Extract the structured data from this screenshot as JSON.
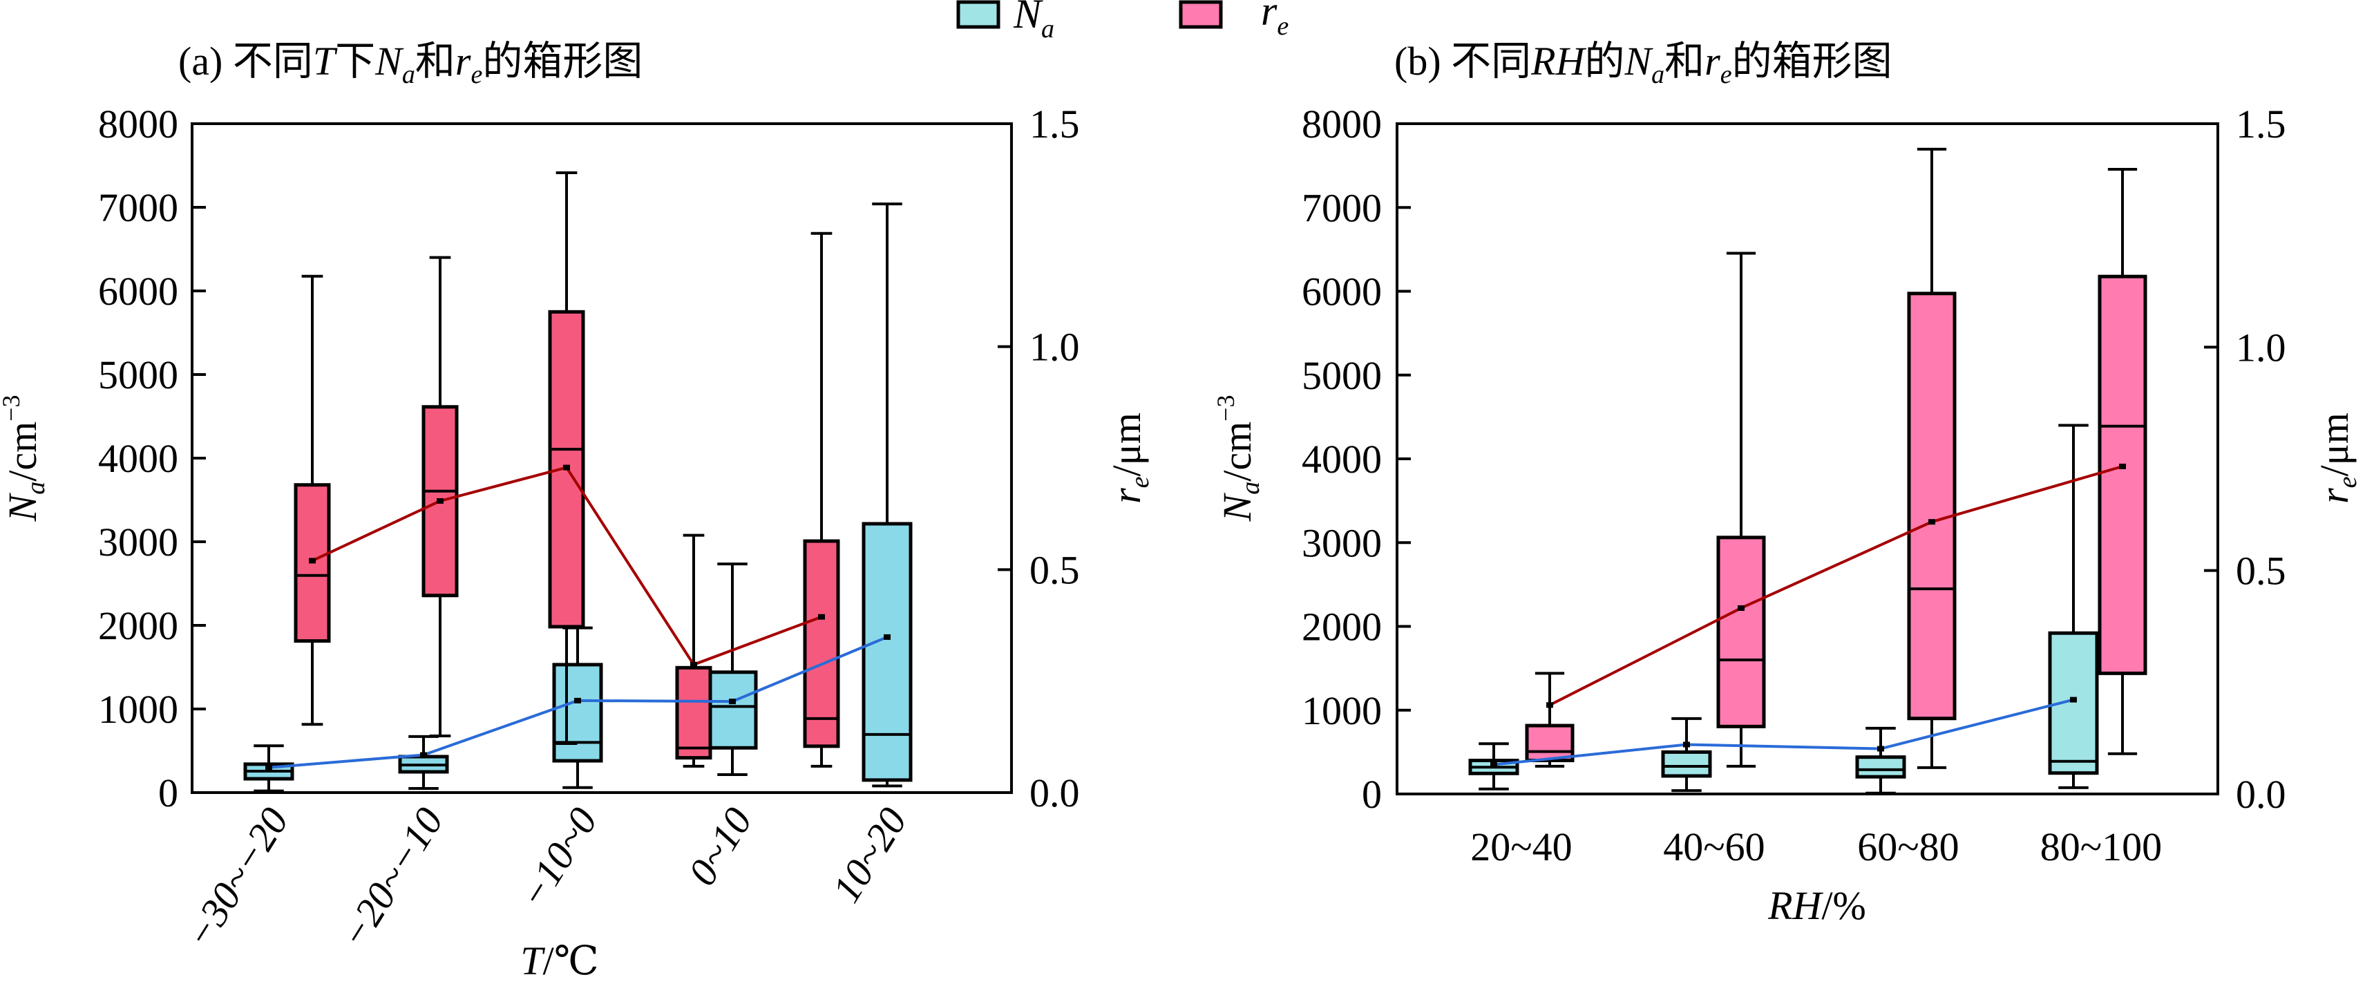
{
  "legend": {
    "items": [
      {
        "label_main": "N",
        "label_sub": "a",
        "color": "#A0E4E6"
      },
      {
        "label_main": "r",
        "label_sub": "e",
        "color": "#FF7BB0"
      }
    ]
  },
  "chart_data": [
    {
      "type": "box",
      "panel": "a",
      "title": {
        "prefix": "(a) 不同",
        "var": "T",
        "mid": "下",
        "n": "N",
        "n_sub": "a",
        "and": "和",
        "r": "r",
        "r_sub": "e",
        "suffix": "的箱形图"
      },
      "xlabel": {
        "var": "T",
        "unit": "/℃"
      },
      "ylabel_left": {
        "main": "N",
        "sub": "a",
        "unit": "/cm",
        "sup": "−3"
      },
      "ylabel_right": {
        "main": "r",
        "sub": "e",
        "unit": "/μm"
      },
      "ylim_left": [
        0,
        8000
      ],
      "ylim_right": [
        0,
        1.5
      ],
      "yticks_left": [
        "0",
        "1000",
        "2000",
        "3000",
        "4000",
        "5000",
        "6000",
        "7000",
        "8000"
      ],
      "yticks_right": [
        "0.0",
        "0.5",
        "1.0",
        "1.5"
      ],
      "categories": [
        "−30~−20",
        "−20~−10",
        "−10~0",
        "0~10",
        "10~20"
      ],
      "colors": {
        "Na": "#8AD9E8",
        "re": "#F55A7E",
        "Na_mean_line": "#2A6BD8",
        "re_mean_line": "#A50000"
      },
      "series": [
        {
          "name": "Na",
          "axis": "left",
          "boxes": [
            {
              "whisker_low": 20,
              "q1": 165,
              "median": 256,
              "q3": 340,
              "whisker_high": 560,
              "mean": 300
            },
            {
              "whisker_low": 50,
              "q1": 248,
              "median": 330,
              "q3": 430,
              "whisker_high": 670,
              "mean": 450
            },
            {
              "whisker_low": 60,
              "q1": 380,
              "median": 600,
              "q3": 1530,
              "whisker_high": 1970,
              "mean": 1100
            },
            {
              "whisker_low": 215,
              "q1": 535,
              "median": 1030,
              "q3": 1440,
              "whisker_high": 2735,
              "mean": 1090
            },
            {
              "whisker_low": 80,
              "q1": 150,
              "median": 695,
              "q3": 3215,
              "whisker_high": 7040,
              "mean": 1860
            }
          ]
        },
        {
          "name": "re",
          "axis": "right",
          "boxes": [
            {
              "whisker_low": 0.153,
              "q1": 0.34,
              "median": 0.487,
              "q3": 0.69,
              "whisker_high": 1.158,
              "mean": 0.52
            },
            {
              "whisker_low": 0.127,
              "q1": 0.442,
              "median": 0.676,
              "q3": 0.865,
              "whisker_high": 1.2,
              "mean": 0.654
            },
            {
              "whisker_low": 0.11,
              "q1": 0.372,
              "median": 0.77,
              "q3": 1.078,
              "whisker_high": 1.39,
              "mean": 0.729
            },
            {
              "whisker_low": 0.059,
              "q1": 0.078,
              "median": 0.1,
              "q3": 0.28,
              "whisker_high": 0.577,
              "mean": 0.287
            },
            {
              "whisker_low": 0.059,
              "q1": 0.104,
              "median": 0.166,
              "q3": 0.564,
              "whisker_high": 1.254,
              "mean": 0.394
            }
          ]
        }
      ]
    },
    {
      "type": "box",
      "panel": "b",
      "title": {
        "prefix": "(b) 不同",
        "var": "RH",
        "mid": "的",
        "n": "N",
        "n_sub": "a",
        "and": "和",
        "r": "r",
        "r_sub": "e",
        "suffix": "的箱形图"
      },
      "xlabel": {
        "var": "RH",
        "unit": "/%"
      },
      "ylabel_left": {
        "main": "N",
        "sub": "a",
        "unit": "/cm",
        "sup": "−3"
      },
      "ylabel_right": {
        "main": "r",
        "sub": "e",
        "unit": "/μm"
      },
      "ylim_left": [
        0,
        8000
      ],
      "ylim_right": [
        0,
        1.5
      ],
      "yticks_left": [
        "0",
        "1000",
        "2000",
        "3000",
        "4000",
        "5000",
        "6000",
        "7000",
        "8000"
      ],
      "yticks_right": [
        "0.0",
        "0.5",
        "1.0",
        "1.5"
      ],
      "categories": [
        "20~40",
        "40~60",
        "60~80",
        "80~100"
      ],
      "colors": {
        "Na": "#A0E4E6",
        "re": "#FF7BB0",
        "Na_mean_line": "#2A6BD8",
        "re_mean_line": "#A50000"
      },
      "series": [
        {
          "name": "Na",
          "axis": "left",
          "boxes": [
            {
              "whisker_low": 60,
              "q1": 245,
              "median": 320,
              "q3": 400,
              "whisker_high": 600,
              "mean": 350
            },
            {
              "whisker_low": 40,
              "q1": 215,
              "median": 330,
              "q3": 500,
              "whisker_high": 900,
              "mean": 590
            },
            {
              "whisker_low": 10,
              "q1": 205,
              "median": 290,
              "q3": 440,
              "whisker_high": 785,
              "mean": 540
            },
            {
              "whisker_low": 75,
              "q1": 250,
              "median": 390,
              "q3": 1920,
              "whisker_high": 4400,
              "mean": 1125
            }
          ]
        },
        {
          "name": "re",
          "axis": "right",
          "boxes": [
            {
              "whisker_low": 0.062,
              "q1": 0.075,
              "median": 0.095,
              "q3": 0.153,
              "whisker_high": 0.27,
              "mean": 0.199
            },
            {
              "whisker_low": 0.062,
              "q1": 0.151,
              "median": 0.3,
              "q3": 0.574,
              "whisker_high": 1.21,
              "mean": 0.416
            },
            {
              "whisker_low": 0.059,
              "q1": 0.169,
              "median": 0.459,
              "q3": 1.12,
              "whisker_high": 1.443,
              "mean": 0.609
            },
            {
              "whisker_low": 0.09,
              "q1": 0.27,
              "median": 0.823,
              "q3": 1.158,
              "whisker_high": 1.398,
              "mean": 0.733
            }
          ]
        }
      ]
    }
  ]
}
